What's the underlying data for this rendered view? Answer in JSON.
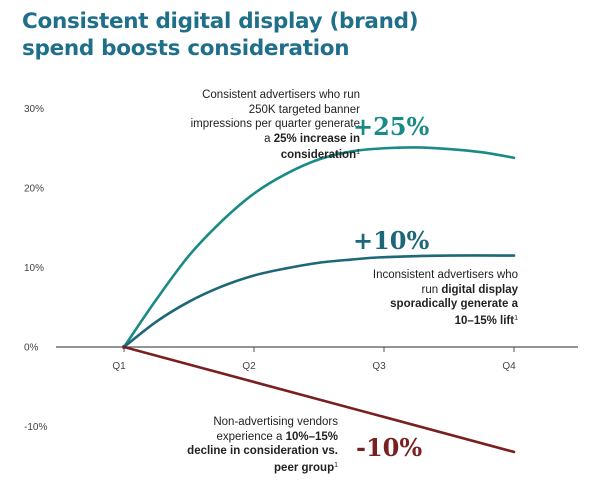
{
  "title": {
    "line1": "Consistent digital display (brand)",
    "line2": "spend boosts consideration"
  },
  "colors": {
    "title": "#1f6f8b",
    "consistent": "#1a8a86",
    "inconsistent": "#1d6779",
    "non_advertising": "#7a1f1f"
  },
  "annotations": {
    "consistent": {
      "part1": "Consistent advertisers who run 250K targeted banner impressions per quarter generate a ",
      "bold": "25% increase in consideration",
      "sup": "1",
      "value_label": "+25%"
    },
    "inconsistent": {
      "part1": "Inconsistent advertisers who run ",
      "bold": "digital display sporadically generate a 10–15% lift",
      "sup": "1",
      "value_label": "+10%"
    },
    "non_advertising": {
      "part1": "Non-advertising vendors experience a ",
      "bold": "10%–15% decline in consideration vs. peer group",
      "sup": "1",
      "value_label": "-10%"
    }
  },
  "chart_data": {
    "type": "line",
    "title": "Consistent digital display (brand) spend boosts consideration",
    "xlabel": "",
    "ylabel": "",
    "categories": [
      "Q1",
      "Q2",
      "Q3",
      "Q4"
    ],
    "y_ticks": [
      "30%",
      "20%",
      "10%",
      "0%",
      "-10%"
    ],
    "ylim": [
      -14,
      31
    ],
    "grid": false,
    "series": [
      {
        "key": "consistent",
        "x": [
          1,
          1.25,
          1.5,
          1.75,
          2,
          2.25,
          2.5,
          2.75,
          3,
          3.25,
          3.5,
          3.75,
          4
        ],
        "values": [
          0,
          6,
          11.5,
          15.8,
          19.3,
          21.8,
          23.6,
          24.6,
          25,
          25.1,
          24.9,
          24.5,
          23.8
        ]
      },
      {
        "key": "inconsistent",
        "x": [
          1,
          1.25,
          1.5,
          1.75,
          2,
          2.25,
          2.5,
          2.75,
          3,
          3.5,
          4
        ],
        "values": [
          0,
          3.2,
          5.7,
          7.6,
          9.0,
          9.9,
          10.6,
          11.0,
          11.3,
          11.5,
          11.5
        ]
      },
      {
        "key": "non_advertising",
        "x": [
          1,
          4
        ],
        "values": [
          0,
          -13.2
        ]
      }
    ]
  }
}
